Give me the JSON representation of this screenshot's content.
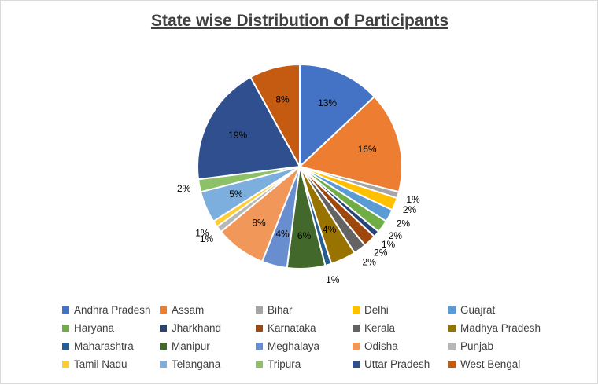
{
  "chart_data": {
    "type": "pie",
    "title": "State wise Distribution of Participants",
    "data_label_format": "percent",
    "legend_position": "bottom",
    "slices": [
      {
        "label": "Andhra Pradesh",
        "value": 13,
        "color": "#4472C4"
      },
      {
        "label": "Assam",
        "value": 16,
        "color": "#ED7D31"
      },
      {
        "label": "Bihar",
        "value": 1,
        "color": "#A5A5A5"
      },
      {
        "label": "Delhi",
        "value": 2,
        "color": "#FFC000"
      },
      {
        "label": "Guajrat",
        "value": 2,
        "color": "#5B9BD5"
      },
      {
        "label": "Haryana",
        "value": 2,
        "color": "#70AD47"
      },
      {
        "label": "Jharkhand",
        "value": 1,
        "color": "#264478"
      },
      {
        "label": "Karnataka",
        "value": 2,
        "color": "#9E480E"
      },
      {
        "label": "Kerala",
        "value": 2,
        "color": "#636363"
      },
      {
        "label": "Madhya Pradesh",
        "value": 4,
        "color": "#997300"
      },
      {
        "label": "Maharashtra",
        "value": 1,
        "color": "#255E91"
      },
      {
        "label": "Manipur",
        "value": 6,
        "color": "#43682B"
      },
      {
        "label": "Meghalaya",
        "value": 4,
        "color": "#698ED0"
      },
      {
        "label": "Odisha",
        "value": 8,
        "color": "#F1975A"
      },
      {
        "label": "Punjab",
        "value": 1,
        "color": "#B7B7B7"
      },
      {
        "label": "Tamil Nadu",
        "value": 1,
        "color": "#FFCD33"
      },
      {
        "label": "Telangana",
        "value": 5,
        "color": "#7CAFDD"
      },
      {
        "label": "Tripura",
        "value": 2,
        "color": "#8CC168"
      },
      {
        "label": "Uttar Pradesh",
        "value": 19,
        "color": "#2F4F8F"
      },
      {
        "label": "West Bengal",
        "value": 8,
        "color": "#C55A11"
      }
    ]
  }
}
